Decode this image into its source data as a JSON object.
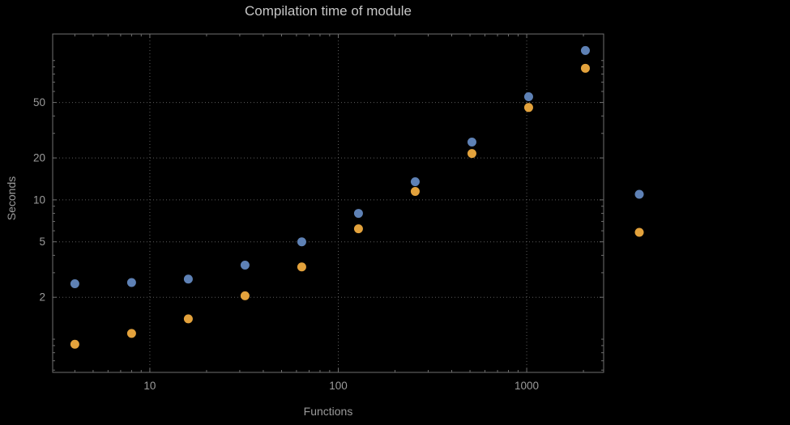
{
  "chart_data": {
    "type": "scatter",
    "title": "Compilation time of module",
    "xlabel": "Functions",
    "ylabel": "Seconds",
    "x_scale": "log",
    "y_scale": "log",
    "xlim": [
      3.05,
      2560
    ],
    "ylim": [
      0.578,
      155
    ],
    "x_ticks_major": [
      10,
      100,
      1000
    ],
    "x_tick_labels": [
      "10",
      "100",
      "1000"
    ],
    "y_ticks_major": [
      2,
      5,
      10,
      20,
      50
    ],
    "y_tick_labels": [
      "2",
      "5",
      "10",
      "20",
      "50"
    ],
    "grid": "dotted-at-major-ticks",
    "x": [
      4,
      8,
      16,
      32,
      64,
      128,
      256,
      512,
      1024,
      2048
    ],
    "series": [
      {
        "name": "series-blue",
        "color": "#5E81B5",
        "values": [
          2.5,
          2.55,
          2.7,
          3.4,
          5.0,
          8.0,
          13.5,
          26,
          55,
          118
        ]
      },
      {
        "name": "series-orange",
        "color": "#E3A23C",
        "values": [
          0.92,
          1.1,
          1.4,
          2.05,
          3.3,
          6.2,
          11.5,
          21.5,
          46,
          88
        ]
      }
    ],
    "legend": {
      "position": "outside-right",
      "labels_visible": false,
      "markers": [
        {
          "name": "legend-marker-blue",
          "color": "#5E81B5"
        },
        {
          "name": "legend-marker-orange",
          "color": "#E3A23C"
        }
      ]
    }
  },
  "style": {
    "background": "#000000",
    "frame_color": "#6f6f6f",
    "grid_color": "#5c5c5c",
    "tick_label_color": "#9b9b9b",
    "axis_label_color": "#9b9b9b",
    "title_color": "#c6c6c6",
    "point_radius": 5.5
  }
}
